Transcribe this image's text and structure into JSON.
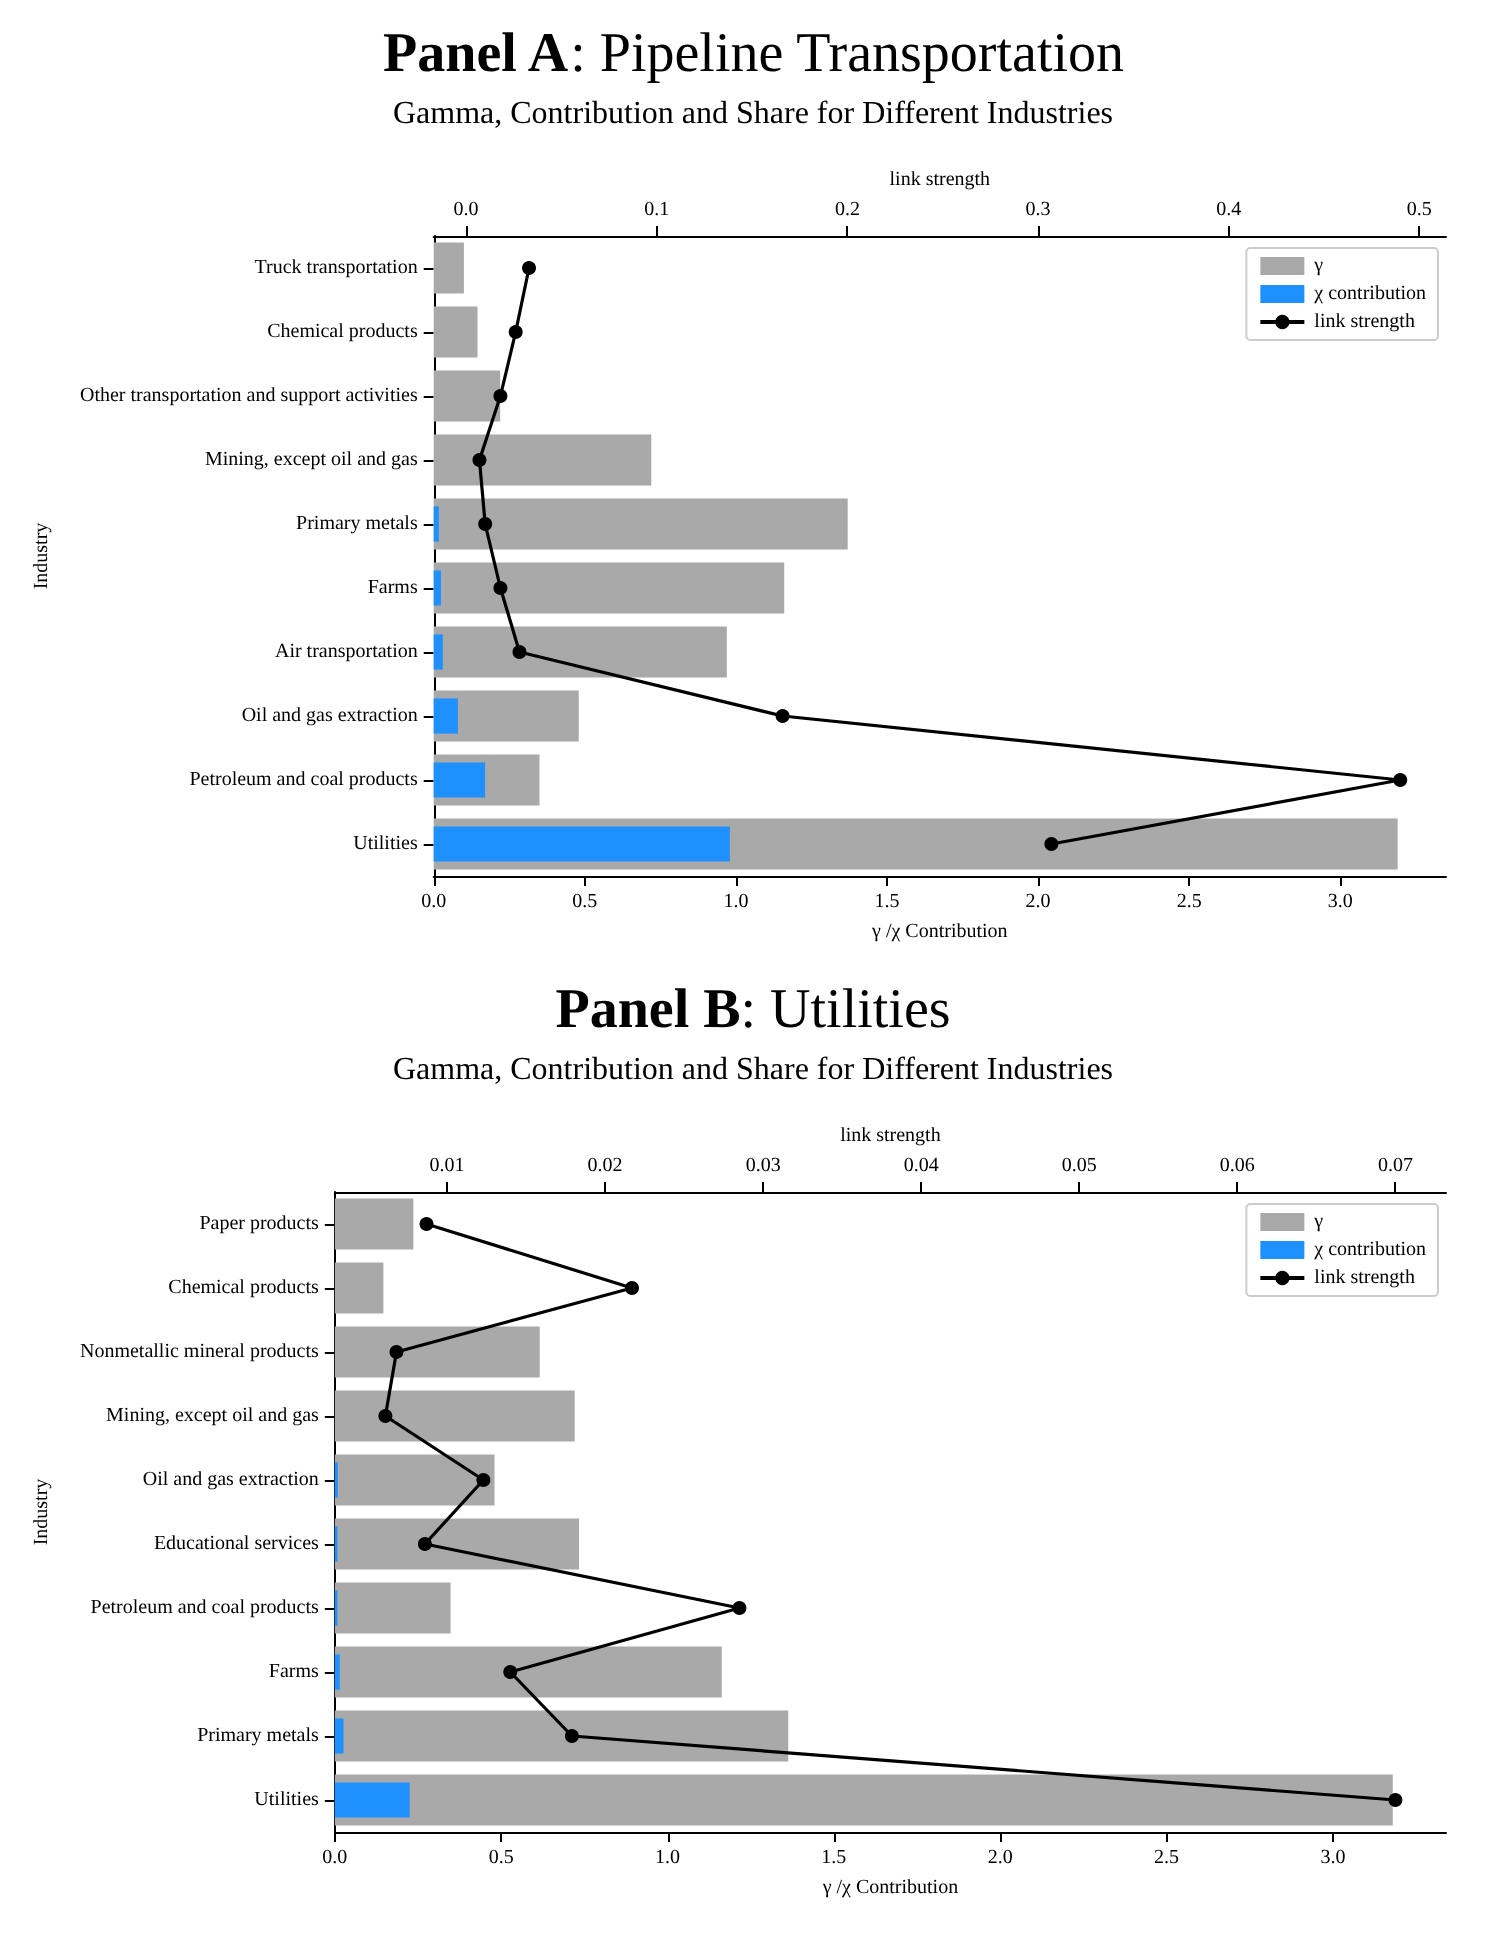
{
  "chart_data": [
    {
      "type": "bar",
      "orientation": "horizontal",
      "title": "Panel A: Pipeline Transportation",
      "subtitle": "Gamma, Contribution and Share for Different Industries",
      "xlabel": "γ /χ Contribution",
      "ylabel": "Industry",
      "x2label": "link strength",
      "legend": "top right",
      "marker": "circle",
      "categories": [
        "Truck transportation",
        "Chemical products",
        "Other transportation and support activities",
        "Mining, except oil and gas",
        "Primary metals",
        "Farms",
        "Air transportation",
        "Oil and gas extraction",
        "Petroleum and coal products",
        "Utilities"
      ],
      "series": [
        {
          "name": "γ",
          "color": "#a9a9a9",
          "values": [
            0.1,
            0.145,
            0.22,
            0.72,
            1.37,
            1.16,
            0.97,
            0.48,
            0.35,
            3.19
          ]
        },
        {
          "name": "χ contribution",
          "color": "#1e90ff",
          "values": [
            0,
            0,
            0,
            0,
            0.017,
            0.024,
            0.03,
            0.08,
            0.17,
            0.98
          ]
        },
        {
          "name": "link strength",
          "type": "line",
          "axis": "x2",
          "color": "#000000",
          "values": [
            0.033,
            0.026,
            0.018,
            0.007,
            0.01,
            0.018,
            0.028,
            0.166,
            0.49,
            0.307
          ]
        }
      ],
      "xlim": [
        0,
        3.35
      ],
      "xticks": [
        {
          "value": 0,
          "label": "0.0"
        },
        0.5,
        {
          "value": 1,
          "label": "1.0"
        },
        1.5,
        {
          "value": 2,
          "label": "2.0"
        },
        2.5,
        {
          "value": 3,
          "label": "3.0"
        }
      ],
      "x2lim": [
        -0.017,
        0.514
      ],
      "x2ticks": [
        {
          "value": 0,
          "label": "0.0"
        },
        0.1,
        0.2,
        0.3,
        0.4,
        0.5
      ]
    },
    {
      "type": "bar",
      "orientation": "horizontal",
      "title": "Panel B: Utilities",
      "subtitle": "Gamma, Contribution and Share for Different Industries",
      "xlabel": "γ /χ Contribution",
      "ylabel": "Industry",
      "x2label": "link strength",
      "legend": "top right",
      "marker": "circle",
      "categories": [
        "Paper products",
        "Chemical products",
        "Nonmetallic mineral products",
        "Mining, except oil and gas",
        "Oil and gas extraction",
        "Educational services",
        "Petroleum and coal products",
        "Farms",
        "Primary metals",
        "Utilities"
      ],
      "series": [
        {
          "name": "γ",
          "color": "#a9a9a9",
          "values": [
            0.236,
            0.146,
            0.616,
            0.721,
            0.48,
            0.734,
            0.348,
            1.163,
            1.363,
            3.18
          ]
        },
        {
          "name": "χ contribution",
          "color": "#1e90ff",
          "values": [
            0,
            0,
            0,
            0,
            0.009,
            0.008,
            0.008,
            0.015,
            0.026,
            0.225
          ]
        },
        {
          "name": "link strength",
          "type": "line",
          "axis": "x2",
          "color": "#000000",
          "values": [
            0.0087,
            0.0217,
            0.0068,
            0.0061,
            0.0123,
            0.0086,
            0.0285,
            0.014,
            0.0179,
            0.07
          ]
        }
      ],
      "xlim": [
        0,
        3.34
      ],
      "xticks": [
        {
          "value": 0,
          "label": "0.0"
        },
        0.5,
        {
          "value": 1,
          "label": "1.0"
        },
        1.5,
        {
          "value": 2,
          "label": "2.0"
        },
        2.5,
        {
          "value": 3,
          "label": "3.0"
        }
      ],
      "x2lim": [
        0.0029,
        0.0732
      ],
      "x2ticks": [
        0.01,
        0.02,
        0.03,
        0.04,
        0.05,
        0.06,
        0.07
      ]
    }
  ]
}
